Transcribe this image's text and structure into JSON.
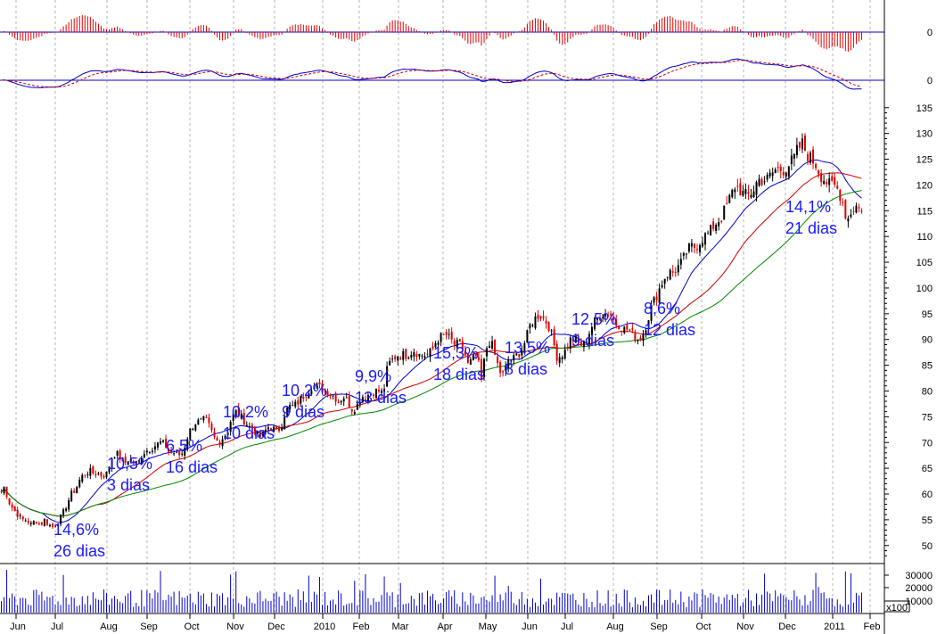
{
  "chart_data": {
    "type": "candlestick",
    "x_axis_labels": [
      "Jun",
      "Jul",
      "Aug",
      "Sep",
      "Oct",
      "Nov",
      "Dec",
      "2010",
      "Feb",
      "Mar",
      "Apr",
      "May",
      "Jun",
      "Jul",
      "Aug",
      "Sep",
      "Oct",
      "Nov",
      "Dec",
      "2011",
      "Feb"
    ],
    "price_axis": {
      "ylim": [
        46.5,
        136
      ],
      "ticks": [
        "135",
        "130",
        "125",
        "120",
        "115",
        "110",
        "105",
        "100",
        "95",
        "90",
        "85",
        "80",
        "75",
        "70",
        "65",
        "60",
        "55",
        "50"
      ]
    },
    "macd_hist_axis": {
      "zero_label": "0"
    },
    "macd_lines_axis": {
      "zero_label": "0"
    },
    "volume_axis": {
      "ticks": [
        "30000",
        "20000",
        "10000"
      ],
      "unit": "x100"
    },
    "colors": {
      "up": "#000000",
      "down": "#e00000",
      "ma_short": "#0000cc",
      "ma_mid": "#cc0000",
      "ma_long": "#008800",
      "annotation": "#1a1aff",
      "zero_line": "#0000cc",
      "grid": "#b4b4b4"
    },
    "price_anchors": [
      [
        0,
        60
      ],
      [
        5,
        61.5
      ],
      [
        10,
        58.5
      ],
      [
        15,
        57
      ],
      [
        20,
        56
      ],
      [
        25,
        55
      ],
      [
        30,
        55
      ],
      [
        35,
        54
      ],
      [
        40,
        55
      ],
      [
        45,
        54
      ],
      [
        50,
        55
      ],
      [
        55,
        54
      ],
      [
        60,
        53.5
      ],
      [
        62,
        54
      ],
      [
        65,
        54.5
      ],
      [
        70,
        56
      ],
      [
        75,
        58
      ],
      [
        80,
        60
      ],
      [
        85,
        61
      ],
      [
        90,
        63
      ],
      [
        95,
        64
      ],
      [
        100,
        64.5
      ],
      [
        105,
        64
      ],
      [
        110,
        64
      ],
      [
        115,
        63.5
      ],
      [
        120,
        64
      ],
      [
        125,
        67
      ],
      [
        130,
        68
      ],
      [
        135,
        67
      ],
      [
        140,
        66
      ],
      [
        145,
        67
      ],
      [
        150,
        66
      ],
      [
        155,
        66
      ],
      [
        160,
        68
      ],
      [
        165,
        68.5
      ],
      [
        170,
        69
      ],
      [
        175,
        69.5
      ],
      [
        180,
        70
      ],
      [
        185,
        69.5
      ],
      [
        190,
        68
      ],
      [
        195,
        68
      ],
      [
        200,
        67.5
      ],
      [
        205,
        68
      ],
      [
        210,
        71
      ],
      [
        215,
        73
      ],
      [
        220,
        74
      ],
      [
        225,
        74
      ],
      [
        230,
        74.5
      ],
      [
        235,
        73
      ],
      [
        240,
        71
      ],
      [
        245,
        70
      ],
      [
        250,
        71
      ],
      [
        255,
        72
      ],
      [
        260,
        75
      ],
      [
        265,
        76
      ],
      [
        270,
        75
      ],
      [
        275,
        74
      ],
      [
        280,
        73
      ],
      [
        285,
        73
      ],
      [
        290,
        71
      ],
      [
        295,
        71.5
      ],
      [
        300,
        73
      ],
      [
        305,
        73
      ],
      [
        310,
        72
      ],
      [
        315,
        73
      ],
      [
        320,
        76
      ],
      [
        325,
        77
      ],
      [
        330,
        77
      ],
      [
        335,
        78
      ],
      [
        340,
        79
      ],
      [
        345,
        80
      ],
      [
        350,
        81
      ],
      [
        355,
        81
      ],
      [
        360,
        80.5
      ],
      [
        365,
        80
      ],
      [
        370,
        79.5
      ],
      [
        375,
        79
      ],
      [
        380,
        78
      ],
      [
        385,
        79
      ],
      [
        390,
        78
      ],
      [
        395,
        76.5
      ],
      [
        400,
        77
      ],
      [
        405,
        79
      ],
      [
        410,
        79
      ],
      [
        415,
        79.5
      ],
      [
        420,
        80
      ],
      [
        425,
        80
      ],
      [
        430,
        79.5
      ],
      [
        435,
        85
      ],
      [
        440,
        86
      ],
      [
        445,
        87
      ],
      [
        450,
        87
      ],
      [
        455,
        87
      ],
      [
        460,
        87.5
      ],
      [
        465,
        88
      ],
      [
        470,
        87
      ],
      [
        475,
        87
      ],
      [
        480,
        87
      ],
      [
        485,
        88
      ],
      [
        490,
        90
      ],
      [
        495,
        90.5
      ],
      [
        500,
        91
      ],
      [
        505,
        90
      ],
      [
        510,
        89
      ],
      [
        515,
        89
      ],
      [
        520,
        88
      ],
      [
        525,
        85
      ],
      [
        530,
        86
      ],
      [
        535,
        87
      ],
      [
        540,
        82
      ],
      [
        545,
        88
      ],
      [
        550,
        90
      ],
      [
        555,
        87
      ],
      [
        560,
        84
      ],
      [
        565,
        83
      ],
      [
        570,
        86
      ],
      [
        575,
        86
      ],
      [
        580,
        87
      ],
      [
        585,
        88
      ],
      [
        590,
        90
      ],
      [
        595,
        93
      ],
      [
        600,
        94
      ],
      [
        605,
        95
      ],
      [
        610,
        94
      ],
      [
        615,
        93
      ],
      [
        620,
        90
      ],
      [
        625,
        86.5
      ],
      [
        630,
        87
      ],
      [
        635,
        88
      ],
      [
        640,
        90
      ],
      [
        645,
        90
      ],
      [
        650,
        89
      ],
      [
        655,
        89
      ],
      [
        660,
        91
      ],
      [
        665,
        93
      ],
      [
        670,
        94
      ],
      [
        675,
        95
      ],
      [
        680,
        95
      ],
      [
        685,
        95
      ],
      [
        690,
        93
      ],
      [
        695,
        93
      ],
      [
        700,
        92
      ],
      [
        705,
        92
      ],
      [
        710,
        91
      ],
      [
        715,
        90
      ],
      [
        720,
        90.5
      ],
      [
        725,
        93
      ],
      [
        730,
        96
      ],
      [
        735,
        98
      ],
      [
        740,
        100
      ],
      [
        745,
        102
      ],
      [
        750,
        103
      ],
      [
        755,
        103
      ],
      [
        760,
        104
      ],
      [
        765,
        105
      ],
      [
        770,
        107
      ],
      [
        775,
        108
      ],
      [
        780,
        108
      ],
      [
        785,
        109
      ],
      [
        790,
        110
      ],
      [
        795,
        110.5
      ],
      [
        800,
        112
      ],
      [
        805,
        113
      ],
      [
        810,
        114
      ],
      [
        815,
        116
      ],
      [
        820,
        118
      ],
      [
        825,
        120
      ],
      [
        830,
        119
      ],
      [
        835,
        118
      ],
      [
        840,
        118
      ],
      [
        845,
        119
      ],
      [
        850,
        121
      ],
      [
        855,
        121
      ],
      [
        860,
        121
      ],
      [
        865,
        122
      ],
      [
        870,
        123
      ],
      [
        875,
        123
      ],
      [
        880,
        123
      ],
      [
        885,
        124
      ],
      [
        890,
        125
      ],
      [
        895,
        127
      ],
      [
        900,
        128
      ],
      [
        905,
        126
      ],
      [
        910,
        125
      ],
      [
        915,
        124
      ],
      [
        920,
        122
      ],
      [
        925,
        121
      ],
      [
        930,
        120
      ],
      [
        935,
        120
      ],
      [
        940,
        119
      ],
      [
        945,
        117
      ],
      [
        950,
        113
      ],
      [
        955,
        115
      ],
      [
        960,
        116
      ],
      [
        965,
        115
      ],
      [
        968,
        116
      ]
    ],
    "annotations": [
      {
        "pct": "14,6%",
        "days": "26 dias"
      },
      {
        "pct": "10,5%",
        "days": "3 dias"
      },
      {
        "pct": "6,5%",
        "days": "16 dias"
      },
      {
        "pct": "10,2%",
        "days": "10 dias"
      },
      {
        "pct": "10,2%",
        "days": "9 dias"
      },
      {
        "pct": "9,9%",
        "days": "13 dias"
      },
      {
        "pct": "15,3%",
        "days": "18 dias"
      },
      {
        "pct": "13,5%",
        "days": "8 dias"
      },
      {
        "pct": "12,5%",
        "days": "9 dias"
      },
      {
        "pct": "8,6%",
        "days": "12 dias"
      },
      {
        "pct": "14,1%",
        "days": "21 dias"
      }
    ]
  }
}
